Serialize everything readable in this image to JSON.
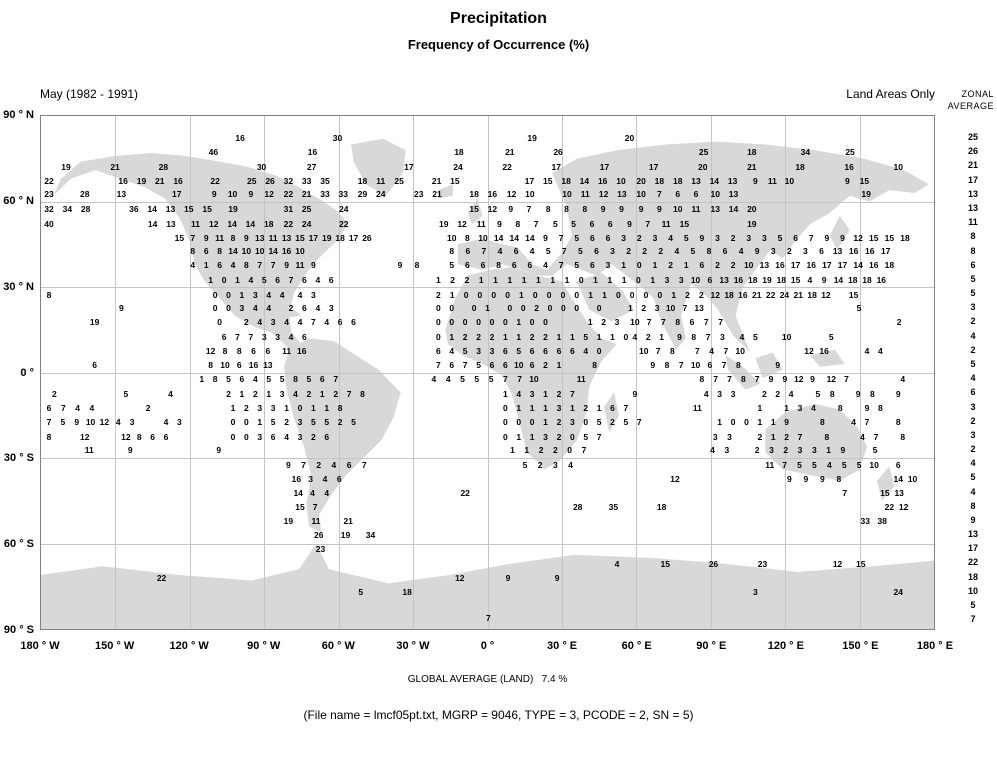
{
  "title": "Precipitation",
  "subtitle": "Frequency of Occurrence (%)",
  "period": "May (1982 - 1991)",
  "note": "Land Areas Only",
  "zonal_header_line1": "ZONAL",
  "zonal_header_line2": "AVERAGE",
  "global_average": "GLOBAL AVERAGE (LAND)   7.4 %",
  "file_info": "(File name = lmcf05pt.txt, MGRP = 9046, TYPE = 3, PCODE = 2, SN = 5)",
  "colors": {
    "land": "#d8d8d8",
    "grid": "#c4c4c4",
    "border": "#808080"
  },
  "chart_data": {
    "type": "heatmap",
    "title": "Precipitation",
    "subtitle": "Frequency of Occurrence (%)",
    "month_range": "May (1982 - 1991)",
    "coverage": "Land Areas Only",
    "global_average_percent": 7.4,
    "grid": "on",
    "x_axis": {
      "label": "Longitude",
      "ticks": [
        "180 ° W",
        "150 ° W",
        "120 ° W",
        "90 ° W",
        "60 ° W",
        "30 ° W",
        "0 °",
        "30 ° E",
        "60 ° E",
        "90 ° E",
        "120 ° E",
        "150 ° E",
        "180 ° E"
      ]
    },
    "y_axis": {
      "label": "Latitude",
      "ticks": [
        "90 ° N",
        "60 ° N",
        "30 ° N",
        "0 °",
        "30 ° S",
        "60 ° S",
        "90 ° S"
      ]
    },
    "zonal_average": {
      "y_start_pct": 4.3,
      "y_step_pct": 2.7529,
      "values": [
        25,
        26,
        21,
        17,
        13,
        13,
        11,
        8,
        8,
        6,
        5,
        5,
        3,
        2,
        4,
        2,
        5,
        4,
        6,
        3,
        2,
        3,
        2,
        4,
        5,
        4,
        8,
        9,
        13,
        17,
        22,
        18,
        10,
        5,
        7
      ]
    },
    "rows": [
      {
        "y": 4.3,
        "c": [
          [
            22.3,
            "16"
          ],
          [
            33.2,
            "30"
          ],
          [
            55.0,
            "19"
          ],
          [
            65.9,
            "20"
          ]
        ]
      },
      {
        "y": 7.0,
        "c": [
          [
            19.3,
            "46"
          ],
          [
            30.4,
            "16"
          ],
          [
            46.8,
            "18"
          ],
          [
            52.5,
            "21"
          ],
          [
            57.9,
            "26"
          ],
          [
            74.2,
            "25"
          ],
          [
            79.6,
            "18"
          ],
          [
            85.6,
            "34"
          ],
          [
            90.6,
            "25"
          ]
        ]
      },
      {
        "y": 9.9,
        "c": [
          [
            2.8,
            "19"
          ],
          [
            8.3,
            "21"
          ],
          [
            13.7,
            "28"
          ],
          [
            24.7,
            "30"
          ],
          [
            30.3,
            "27"
          ],
          [
            41.2,
            "17"
          ],
          [
            46.7,
            "24"
          ],
          [
            52.2,
            "22"
          ],
          [
            57.7,
            "17"
          ],
          [
            63.1,
            "17"
          ],
          [
            68.6,
            "17"
          ],
          [
            74.1,
            "20"
          ],
          [
            79.6,
            "21"
          ],
          [
            85.0,
            "18"
          ],
          [
            90.5,
            "16"
          ],
          [
            96.0,
            "10"
          ]
        ]
      },
      {
        "y": 12.6,
        "c": [
          [
            0.9,
            "22"
          ],
          [
            9.2,
            "16 19 21 16",
            2.05
          ],
          [
            19.5,
            "22"
          ],
          [
            23.6,
            "25 26 32 33 35",
            2.05
          ],
          [
            36.0,
            "18 11 25",
            2.05
          ],
          [
            44.3,
            "21 15",
            2.05
          ],
          [
            54.7,
            "17 15 18 14 16 10",
            2.05
          ],
          [
            67.2,
            "20 18 18 13 14 13",
            2.05
          ],
          [
            80.0,
            "9 11 10",
            1.9
          ],
          [
            90.3,
            "9 15",
            1.9
          ]
        ]
      },
      {
        "y": 15.3,
        "c": [
          [
            0.9,
            "23"
          ],
          [
            4.9,
            "28"
          ],
          [
            9.0,
            "13"
          ],
          [
            15.2,
            "17"
          ],
          [
            19.4,
            "9 10 9 12",
            2.05
          ],
          [
            27.7,
            "22 21 33 33",
            2.05
          ],
          [
            36.0,
            "29 24",
            2.05
          ],
          [
            42.3,
            "23 21",
            2.05
          ],
          [
            48.5,
            "18 16",
            2.05
          ],
          [
            52.7,
            "12 10",
            2.05
          ],
          [
            58.9,
            "10 11 12 13",
            2.05
          ],
          [
            67.2,
            "10 7 6 6",
            2.05
          ],
          [
            75.5,
            "10 13",
            2.05
          ],
          [
            92.4,
            "19"
          ]
        ]
      },
      {
        "y": 18.1,
        "c": [
          [
            0.9,
            "32 34 28",
            2.05
          ],
          [
            10.4,
            "36 14 13 15 15",
            2.05
          ],
          [
            21.5,
            "19"
          ],
          [
            27.7,
            "31 25",
            2.05
          ],
          [
            33.9,
            "24"
          ],
          [
            48.5,
            "15 12 9 7",
            2.05
          ],
          [
            56.8,
            "8 8 8 9 9",
            2.05
          ],
          [
            67.2,
            "9 9 10 11",
            2.05
          ],
          [
            75.5,
            "13 14 20",
            2.05
          ]
        ]
      },
      {
        "y": 21.0,
        "c": [
          [
            0.9,
            "40"
          ],
          [
            12.5,
            "14 13",
            2.05
          ],
          [
            17.3,
            "11 12 14 14 18",
            2.05
          ],
          [
            27.7,
            "22 24",
            2.05
          ],
          [
            33.9,
            "22"
          ],
          [
            45.1,
            "19 12",
            2.05
          ],
          [
            49.3,
            "11 9 8 7",
            2.05
          ],
          [
            57.6,
            "5 5 6 6",
            2.05
          ],
          [
            65.9,
            "9 7 11 15",
            2.05
          ],
          [
            79.6,
            "19"
          ]
        ]
      },
      {
        "y": 23.7,
        "c": [
          [
            15.5,
            "15 7 9 11 8 9 13 11 13 15 17 19 18 17 26",
            1.5
          ],
          [
            46.0,
            "10 8 10 14 14 14 9 7 5 6 6 3 2 3 4 5 9 3 2 3 3 5 6 7 9 9 12 15 15 18",
            1.75
          ]
        ]
      },
      {
        "y": 26.4,
        "c": [
          [
            17.0,
            "8 6 8 14 10 10 14 16 10",
            1.5
          ],
          [
            46.0,
            "8 6 7 4 6 4 5 7 5 6 3 2 2 2 4 5 8 6 4 9 3 2 3 6 13 16 16 17",
            1.8
          ]
        ]
      },
      {
        "y": 29.1,
        "c": [
          [
            17.0,
            "4 1 6 4 8 7 7 9 11 9",
            1.5
          ],
          [
            40.2,
            "9 8",
            1.9
          ],
          [
            46.0,
            "5 6 6 8 6 6 4 7 5 6 3 1 0 1 2 1 6 2 2 10 13 16 17 16 17 17 14 16 18",
            1.75
          ]
        ]
      },
      {
        "y": 32.0,
        "c": [
          [
            19.0,
            "1 0 1 4 5 6 7 6 4",
            1.5
          ],
          [
            32.5,
            "6"
          ],
          [
            44.5,
            "1 2 2 1 1 1 1 1 1 1 0 1 1 1 0 1 3 3 10 6 13 16 18 19 18 15 4 9 14 18 18 16",
            1.6
          ]
        ]
      },
      {
        "y": 34.8,
        "c": [
          [
            0.9,
            "8"
          ],
          [
            19.5,
            "0 0 1 3 4 4",
            1.5
          ],
          [
            29.0,
            "4 3",
            1.5
          ],
          [
            44.5,
            "2 1 0 0 0 0 1 0 0 0 0 1 1 0 0 0 0 1 2 2 12 18 16 21 22 24 21 18 12",
            1.55
          ],
          [
            91.0,
            "15"
          ]
        ]
      },
      {
        "y": 37.5,
        "c": [
          [
            9.0,
            "9"
          ],
          [
            19.5,
            "0 0 3 4 4",
            1.5
          ],
          [
            28.0,
            "2 6 4 3",
            1.5
          ],
          [
            44.5,
            "0 0",
            1.5
          ],
          [
            48.5,
            "0 1",
            1.5
          ],
          [
            52.5,
            "0 0 2 0 0 0",
            1.5
          ],
          [
            62.5,
            "0"
          ],
          [
            66.0,
            "1 2 3",
            1.5
          ],
          [
            70.5,
            "10 7 13",
            1.6
          ],
          [
            91.6,
            "5"
          ]
        ]
      },
      {
        "y": 40.2,
        "c": [
          [
            6.0,
            "19"
          ],
          [
            20.0,
            "0"
          ],
          [
            23.0,
            "2 4 3 4 4 7 4 6 6",
            1.5
          ],
          [
            44.5,
            "0 0 0 0 0 0 1 0 0",
            1.5
          ],
          [
            61.5,
            "1 2 3",
            1.5
          ],
          [
            66.5,
            "10 7 7 8 6 7 7",
            1.6
          ],
          [
            96.1,
            "2"
          ]
        ]
      },
      {
        "y": 43.1,
        "c": [
          [
            20.5,
            "6 7 7 3 3 4 6",
            1.5
          ],
          [
            44.5,
            "0 1 2 2 2 1 1 2 2 1 1 5 1 1 0",
            1.5
          ],
          [
            66.5,
            "4 2 1",
            1.5
          ],
          [
            71.5,
            "9 8 7 3",
            1.6
          ],
          [
            78.5,
            "4 5",
            1.5
          ],
          [
            83.5,
            "10"
          ],
          [
            88.5,
            "5"
          ]
        ]
      },
      {
        "y": 45.8,
        "c": [
          [
            19.0,
            "12 8 8 6 6",
            1.6
          ],
          [
            27.5,
            "11 16",
            1.7
          ],
          [
            44.5,
            "6 4 5 3 3 6 5 6 6 6 6 4 0",
            1.5
          ],
          [
            67.5,
            "10 7 8",
            1.6
          ],
          [
            73.5,
            "7 4 7 10",
            1.6
          ],
          [
            86.0,
            "12 16",
            1.7
          ],
          [
            92.5,
            "4 4",
            1.5
          ]
        ]
      },
      {
        "y": 48.5,
        "c": [
          [
            6.0,
            "6"
          ],
          [
            19.0,
            "8 10 6 16 13",
            1.6
          ],
          [
            44.5,
            "7 6 7 5 6 6 10 6 2 1",
            1.5
          ],
          [
            62.0,
            "8"
          ],
          [
            68.5,
            "9 8 7 10 6 7 8",
            1.6
          ],
          [
            82.5,
            "9"
          ]
        ]
      },
      {
        "y": 51.3,
        "c": [
          [
            18.0,
            "1 8 5 6 4 5 5 8 5 6 7",
            1.5
          ],
          [
            44.0,
            "4 4 5 5 5 7 7 10",
            1.6
          ],
          [
            60.5,
            "11"
          ],
          [
            74.0,
            "8 7 7 8 7 9 9 12 9",
            1.55
          ],
          [
            88.5,
            "12 7",
            1.7
          ],
          [
            96.5,
            "4"
          ]
        ]
      },
      {
        "y": 54.2,
        "c": [
          [
            1.5,
            "2"
          ],
          [
            9.5,
            "5"
          ],
          [
            14.5,
            "4"
          ],
          [
            21.0,
            "2 1 2 1 3 4 2 1 2 7 8",
            1.5
          ],
          [
            52.0,
            "1 4 3 1 2 7",
            1.5
          ],
          [
            66.5,
            "9"
          ],
          [
            74.5,
            "4 3 3",
            1.5
          ],
          [
            81.0,
            "2 2 4",
            1.5
          ],
          [
            87.0,
            "5 8",
            1.6
          ],
          [
            91.5,
            "9 8",
            1.6
          ],
          [
            96.0,
            "9"
          ]
        ]
      },
      {
        "y": 56.9,
        "c": [
          [
            0.9,
            "6 7 4 4",
            1.6
          ],
          [
            12.0,
            "2"
          ],
          [
            21.5,
            "1 2 3 3 1 0 1 1 8",
            1.5
          ],
          [
            52.0,
            "0 1 1 1 3 1 2 1 6 7",
            1.5
          ],
          [
            73.5,
            "11"
          ],
          [
            80.5,
            "1"
          ],
          [
            83.5,
            "1 3 4",
            1.5
          ],
          [
            89.5,
            "8"
          ],
          [
            92.5,
            "9 8",
            1.5
          ]
        ]
      },
      {
        "y": 59.6,
        "c": [
          [
            0.9,
            "7 5 9 10 12 4 3",
            1.55
          ],
          [
            14.0,
            "4 3",
            1.5
          ],
          [
            21.5,
            "0 0 1 5 2 3 5 5 2 5",
            1.5
          ],
          [
            52.0,
            "0 0 0 1 2 3 0 5 2 5 7",
            1.5
          ],
          [
            76.0,
            "1 0 0 1 1 9",
            1.5
          ],
          [
            87.5,
            "8"
          ],
          [
            91.0,
            "4 7",
            1.5
          ],
          [
            96.0,
            "8"
          ]
        ]
      },
      {
        "y": 62.5,
        "c": [
          [
            0.9,
            "8"
          ],
          [
            4.9,
            "12"
          ],
          [
            9.5,
            "12 8 6 6",
            1.5
          ],
          [
            21.5,
            "0 0 3 6 4 3 2 6",
            1.5
          ],
          [
            52.0,
            "0 1 1 3 2 0 5 7",
            1.5
          ],
          [
            75.5,
            "3 3",
            1.6
          ],
          [
            80.5,
            "2 1 2 7",
            1.5
          ],
          [
            88.0,
            "8"
          ],
          [
            92.0,
            "4 7",
            1.5
          ],
          [
            96.5,
            "8"
          ]
        ]
      },
      {
        "y": 65.2,
        "c": [
          [
            5.4,
            "11"
          ],
          [
            10.0,
            "9"
          ],
          [
            19.9,
            "9"
          ],
          [
            52.8,
            "1 1 2 2 0 7",
            1.6
          ],
          [
            75.2,
            "4 3",
            1.6
          ],
          [
            80.2,
            "2 3 2 3 3 1 9",
            1.6
          ],
          [
            93.4,
            "5"
          ]
        ]
      },
      {
        "y": 68.0,
        "c": [
          [
            27.7,
            "9 7 2 4 6 7",
            1.7
          ],
          [
            54.2,
            "5 2 3 4",
            1.7
          ],
          [
            81.6,
            "11 7 5 5 4 5 5 10",
            1.67
          ],
          [
            96.0,
            "6"
          ]
        ]
      },
      {
        "y": 70.7,
        "c": [
          [
            28.6,
            "16 3 4 6",
            1.6
          ],
          [
            71.0,
            "12"
          ],
          [
            83.8,
            "9 9 9 8",
            1.85
          ],
          [
            96.0,
            "14 10",
            1.6
          ]
        ]
      },
      {
        "y": 73.4,
        "c": [
          [
            28.8,
            "14 4 4",
            1.6
          ],
          [
            47.5,
            "22"
          ],
          [
            90.0,
            "7"
          ],
          [
            94.5,
            "15 13",
            1.6
          ]
        ]
      },
      {
        "y": 76.3,
        "c": [
          [
            29.0,
            "15 7",
            1.7
          ],
          [
            60.1,
            "28"
          ],
          [
            64.1,
            "35"
          ],
          [
            69.5,
            "18"
          ],
          [
            95.0,
            "22 12",
            1.6
          ]
        ]
      },
      {
        "y": 79.0,
        "c": [
          [
            27.7,
            "19"
          ],
          [
            30.8,
            "11"
          ],
          [
            34.4,
            "21"
          ],
          [
            92.3,
            "33 38",
            1.9
          ]
        ]
      },
      {
        "y": 81.7,
        "c": [
          [
            31.1,
            "26"
          ],
          [
            34.1,
            "19"
          ],
          [
            36.9,
            "34"
          ]
        ]
      },
      {
        "y": 84.5,
        "c": [
          [
            31.3,
            "23"
          ]
        ]
      },
      {
        "y": 87.4,
        "c": [
          [
            64.5,
            "4"
          ],
          [
            69.9,
            "15"
          ],
          [
            75.3,
            "26"
          ],
          [
            80.8,
            "23"
          ],
          [
            89.2,
            "12"
          ],
          [
            91.8,
            "15"
          ]
        ]
      },
      {
        "y": 90.1,
        "c": [
          [
            13.5,
            "22"
          ],
          [
            46.9,
            "12"
          ],
          [
            52.3,
            "9"
          ],
          [
            57.8,
            "9"
          ]
        ]
      },
      {
        "y": 92.8,
        "c": [
          [
            35.8,
            "5"
          ],
          [
            41.0,
            "18"
          ],
          [
            80.0,
            "3"
          ],
          [
            96.0,
            "24"
          ]
        ]
      },
      {
        "y": 97.9,
        "c": [
          [
            50.1,
            "7"
          ]
        ]
      }
    ]
  }
}
